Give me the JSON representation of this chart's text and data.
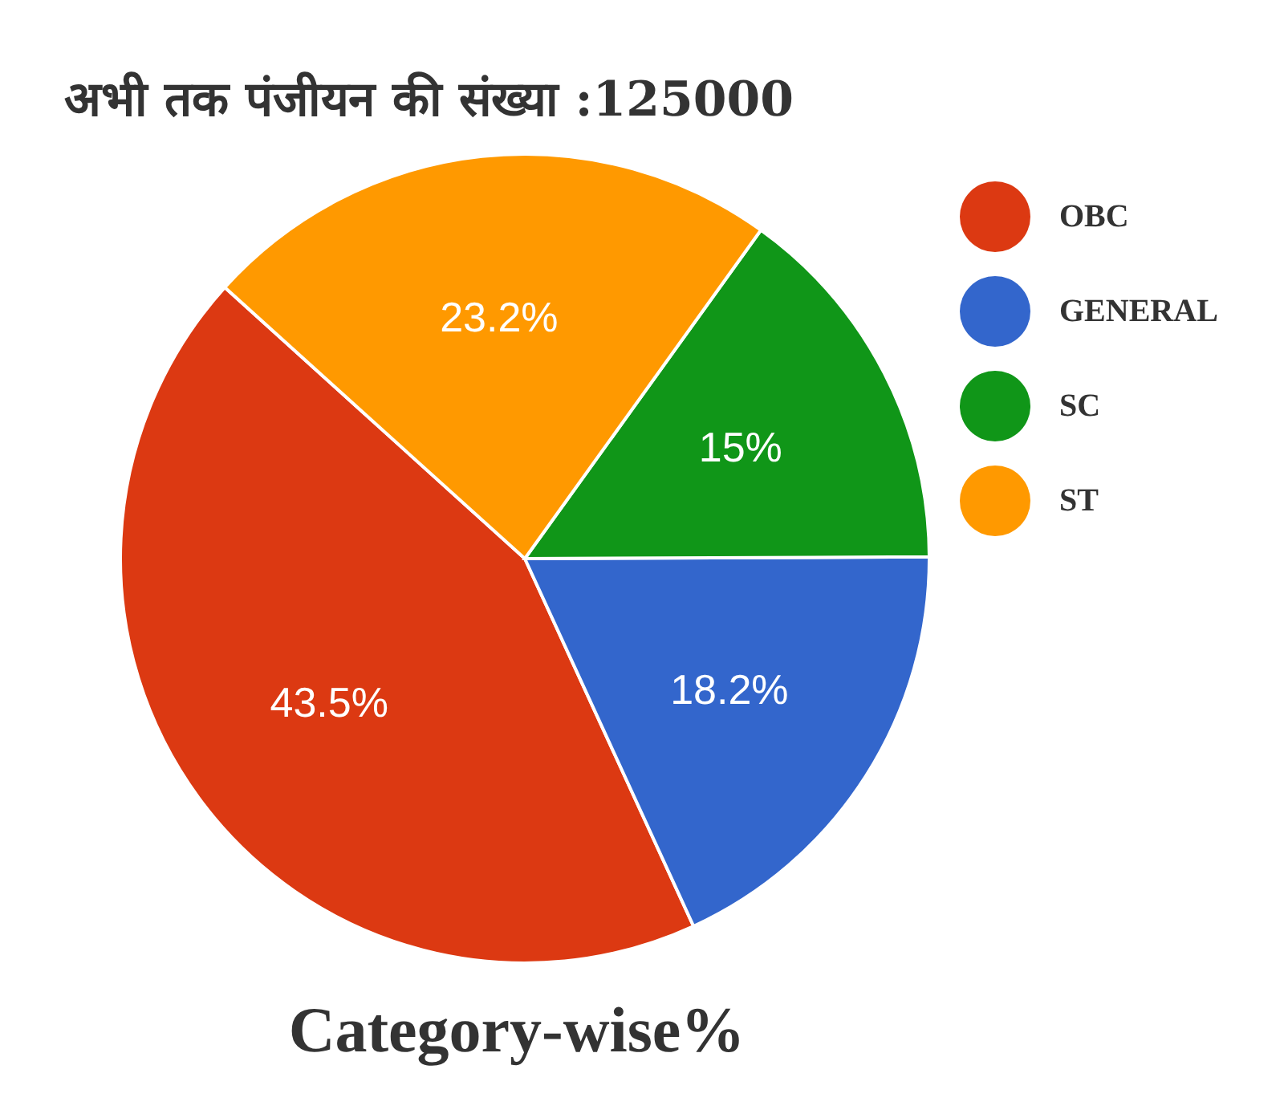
{
  "chart_data": {
    "type": "pie",
    "title": "अभी तक पंजीयन की संख्या :125000",
    "categories": [
      "OBC",
      "GENERAL",
      "SC",
      "ST"
    ],
    "values": [
      43.5,
      18.2,
      15,
      23.2
    ],
    "colors": [
      "#dc3912",
      "#3366cc",
      "#109618",
      "#ff9900"
    ],
    "value_labels": [
      "43.5%",
      "18.2%",
      "15%",
      "23.2%"
    ],
    "legend": "top right",
    "annotations": [
      "Category-wise%"
    ]
  }
}
